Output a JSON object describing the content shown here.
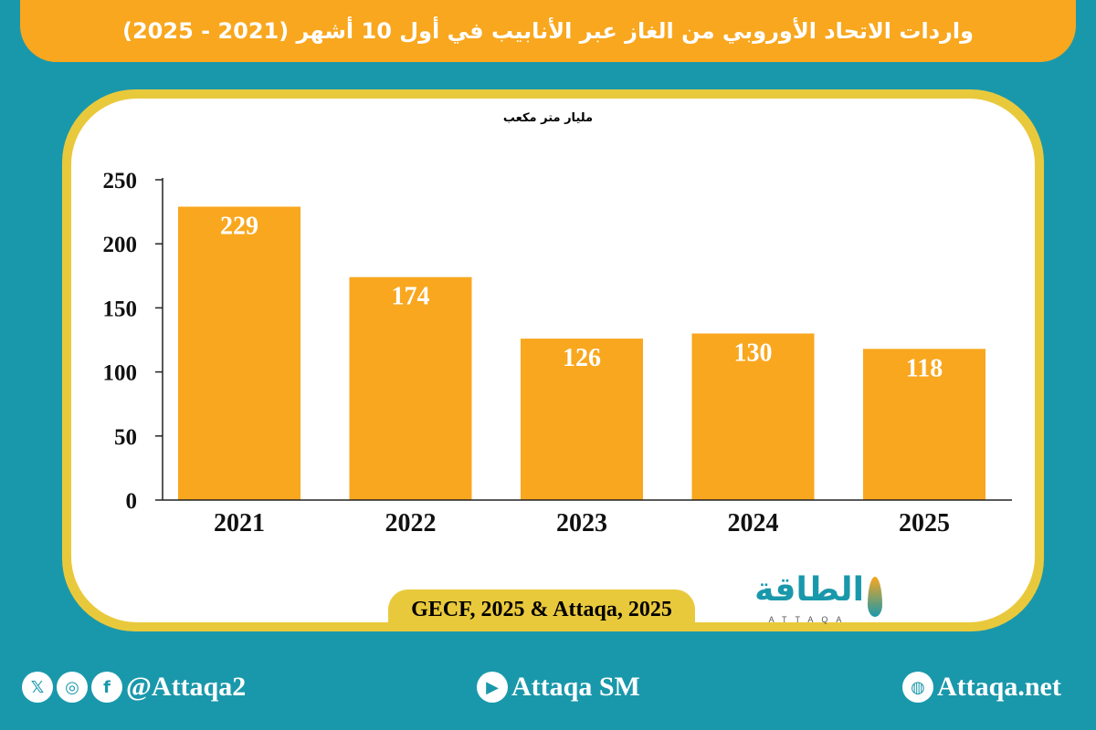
{
  "title": "واردات الاتحاد الأوروبي من الغاز عبر الأنابيب في أول 10 أشهر (2021 - 2025)",
  "chart_data": {
    "type": "bar",
    "title": "واردات الاتحاد الأوروبي من الغاز عبر الأنابيب في أول 10 أشهر (2021 - 2025)",
    "ylabel": "مليار متر مكعب",
    "xlabel": "",
    "categories": [
      "2021",
      "2022",
      "2023",
      "2024",
      "2025"
    ],
    "values": [
      229,
      174,
      126,
      130,
      118
    ],
    "ylim": [
      0,
      250
    ],
    "yticks": [
      0,
      50,
      100,
      150,
      200,
      250
    ],
    "grid": false,
    "bar_color": "#f9a71e",
    "data_labels": true
  },
  "source": "GECF, 2025 & Attaqa, 2025",
  "logo": {
    "arabic": "الطاقة",
    "latin": "ATTAQA"
  },
  "footer": {
    "social_handle": "@Attaqa2",
    "youtube": "Attaqa SM",
    "website": "Attaqa.net"
  },
  "colors": {
    "background": "#1a98ab",
    "accent": "#f9a71e",
    "frame": "#e9c93c"
  }
}
